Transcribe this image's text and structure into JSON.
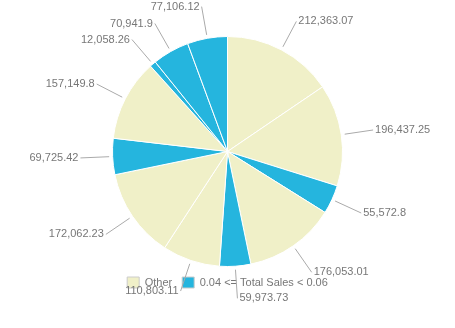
{
  "chart_data": {
    "type": "pie",
    "categories": [
      "Other",
      "Other",
      "0.04 <= Total Sales < 0.06",
      "Other",
      "0.04 <= Total Sales < 0.06",
      "Other",
      "Other",
      "0.04 <= Total Sales < 0.06",
      "Other",
      "0.04 <= Total Sales < 0.06",
      "0.04 <= Total Sales < 0.06",
      "0.04 <= Total Sales < 0.06"
    ],
    "values": [
      212363.07,
      196437.25,
      55572.8,
      176053.01,
      59973.73,
      110803.11,
      172062.23,
      69725.42,
      157149.8,
      12058.26,
      70941.9,
      77106.12
    ],
    "value_labels": [
      "212,363.07",
      "196,437.25",
      "55,572.8",
      "176,053.01",
      "59,973.73",
      "110,803.11",
      "172,062.23",
      "69,725.42",
      "157,149.8",
      "12,058.26",
      "70,941.9",
      "77,106.12"
    ],
    "colors": [
      "#f0f0c8",
      "#f0f0c8",
      "#25b5de",
      "#f0f0c8",
      "#25b5de",
      "#f0f0c8",
      "#f0f0c8",
      "#25b5de",
      "#f0f0c8",
      "#25b5de",
      "#25b5de",
      "#25b5de"
    ],
    "data_labels": true,
    "legend": "bottom"
  }
}
